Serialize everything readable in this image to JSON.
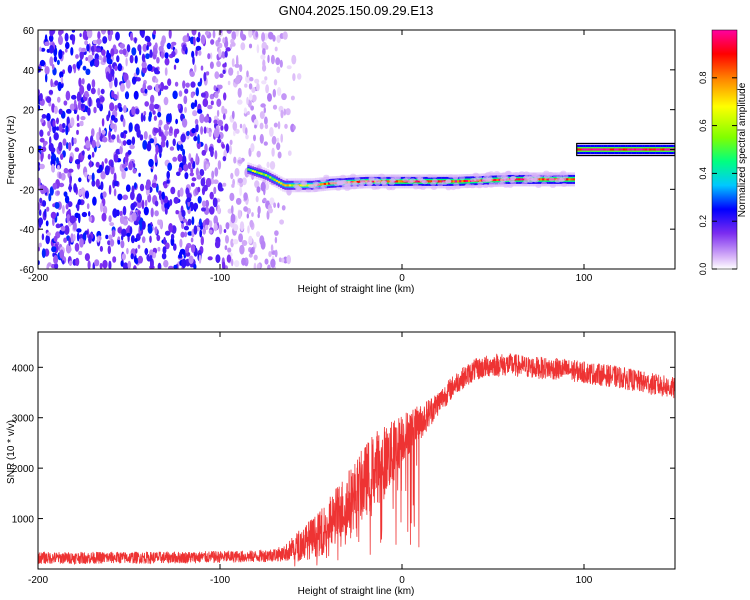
{
  "figure": {
    "title": "GN04.2025.150.09.29.E13"
  },
  "chart_data": [
    {
      "type": "heatmap",
      "xlabel": "Height of straight line (km)",
      "ylabel": "Frequency (Hz)",
      "xlim": [
        -200,
        150
      ],
      "ylim": [
        -60,
        60
      ],
      "x_ticks": [
        -200,
        -100,
        0,
        100
      ],
      "y_ticks": [
        -60,
        -40,
        -20,
        0,
        20,
        40,
        60
      ],
      "grid": false,
      "colorbar": {
        "label": "Normalized spectral amplitude",
        "range": [
          0,
          1
        ],
        "ticks": [
          0.0,
          0.2,
          0.4,
          0.6,
          0.8
        ],
        "colors": [
          "#ffffff",
          "#d8b4f8",
          "#7b2cf0",
          "#0000ff",
          "#00c8ff",
          "#00ff80",
          "#80ff00",
          "#ffff00",
          "#ff8000",
          "#ff0000",
          "#ff00a0"
        ]
      },
      "noise_region": {
        "x_from": -200,
        "x_to": -55,
        "amplitude": 0.25
      },
      "ridge": {
        "description_points": [
          {
            "x": -85,
            "y": -10,
            "amp": 0.55
          },
          {
            "x": -75,
            "y": -13,
            "amp": 0.6
          },
          {
            "x": -65,
            "y": -18,
            "amp": 0.65
          },
          {
            "x": -50,
            "y": -18,
            "amp": 0.75
          },
          {
            "x": -40,
            "y": -17,
            "amp": 0.8
          },
          {
            "x": -20,
            "y": -16,
            "amp": 0.85
          },
          {
            "x": 0,
            "y": -16,
            "amp": 0.9
          },
          {
            "x": 30,
            "y": -16,
            "amp": 0.9
          },
          {
            "x": 60,
            "y": -15,
            "amp": 0.9
          },
          {
            "x": 95,
            "y": -15,
            "amp": 0.9
          },
          {
            "x": 96,
            "y": 0,
            "amp": 1.0
          },
          {
            "x": 150,
            "y": 0,
            "amp": 1.0
          }
        ]
      }
    },
    {
      "type": "line",
      "xlabel": "Height of straight line (km)",
      "ylabel": "SNR (10 * v/v)",
      "xlim": [
        -200,
        150
      ],
      "ylim": [
        0,
        4700
      ],
      "x_ticks": [
        -200,
        -100,
        0,
        100
      ],
      "y_ticks": [
        1000,
        2000,
        3000,
        4000
      ],
      "grid": false,
      "series": [
        {
          "color": "#ee3333",
          "x": [
            -200,
            -180,
            -160,
            -140,
            -120,
            -100,
            -80,
            -65,
            -55,
            -45,
            -35,
            -25,
            -15,
            -5,
            0,
            10,
            20,
            30,
            40,
            50,
            60,
            70,
            80,
            90,
            100,
            110,
            120,
            130,
            140,
            150
          ],
          "mean": [
            220,
            220,
            225,
            225,
            230,
            240,
            250,
            300,
            500,
            700,
            1100,
            1500,
            2000,
            2300,
            2600,
            2900,
            3300,
            3700,
            3950,
            4050,
            4050,
            4000,
            3980,
            3950,
            3900,
            3850,
            3800,
            3720,
            3650,
            3580
          ],
          "noise": [
            120,
            120,
            120,
            120,
            120,
            120,
            120,
            150,
            350,
            450,
            600,
            700,
            750,
            650,
            500,
            350,
            250,
            220,
            220,
            230,
            230,
            220,
            220,
            220,
            220,
            220,
            220,
            220,
            220,
            220
          ]
        }
      ]
    }
  ]
}
